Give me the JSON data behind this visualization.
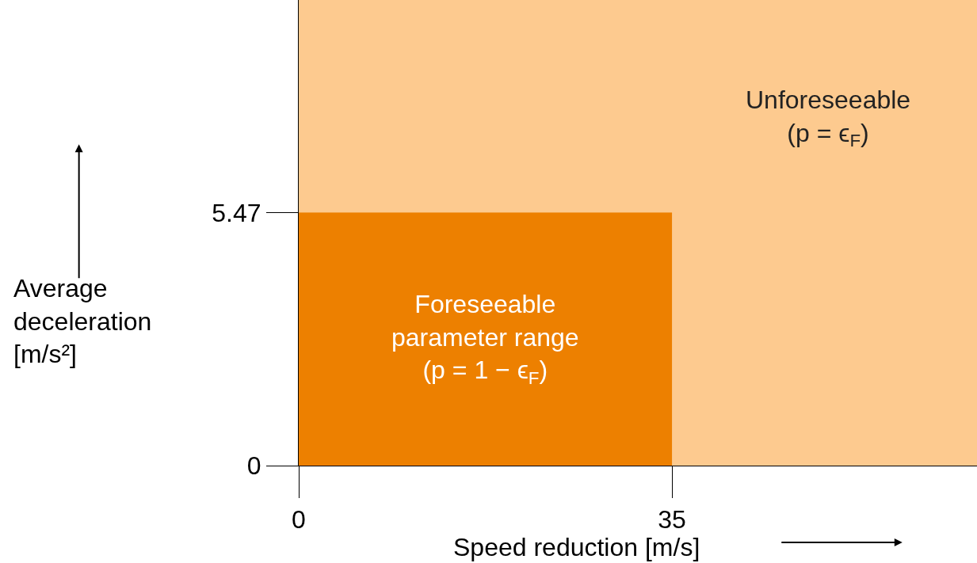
{
  "chart_data": {
    "type": "area",
    "xlabel": "Speed reduction [m/s]",
    "ylabel": "Average deceleration [m/s²]",
    "x": [
      0,
      35
    ],
    "series": [
      {
        "color": "#ed8000",
        "values": [
          5.47,
          5.47
        ]
      }
    ],
    "xlim": [
      0,
      63.6
    ],
    "ylim": [
      0,
      10.08
    ],
    "xticks": [
      0,
      35
    ],
    "yticks": [
      0,
      5.47
    ],
    "bands": [
      {
        "axis": "x",
        "from": 0,
        "to": 63.6,
        "color": "#fdca8f",
        "label": "Unforeseeable (p = ϵ$_{F}$)"
      }
    ],
    "annotations": [
      "Foreseeable parameter range (p = 1 − ϵ$_{F}$)"
    ],
    "grid": false
  }
}
